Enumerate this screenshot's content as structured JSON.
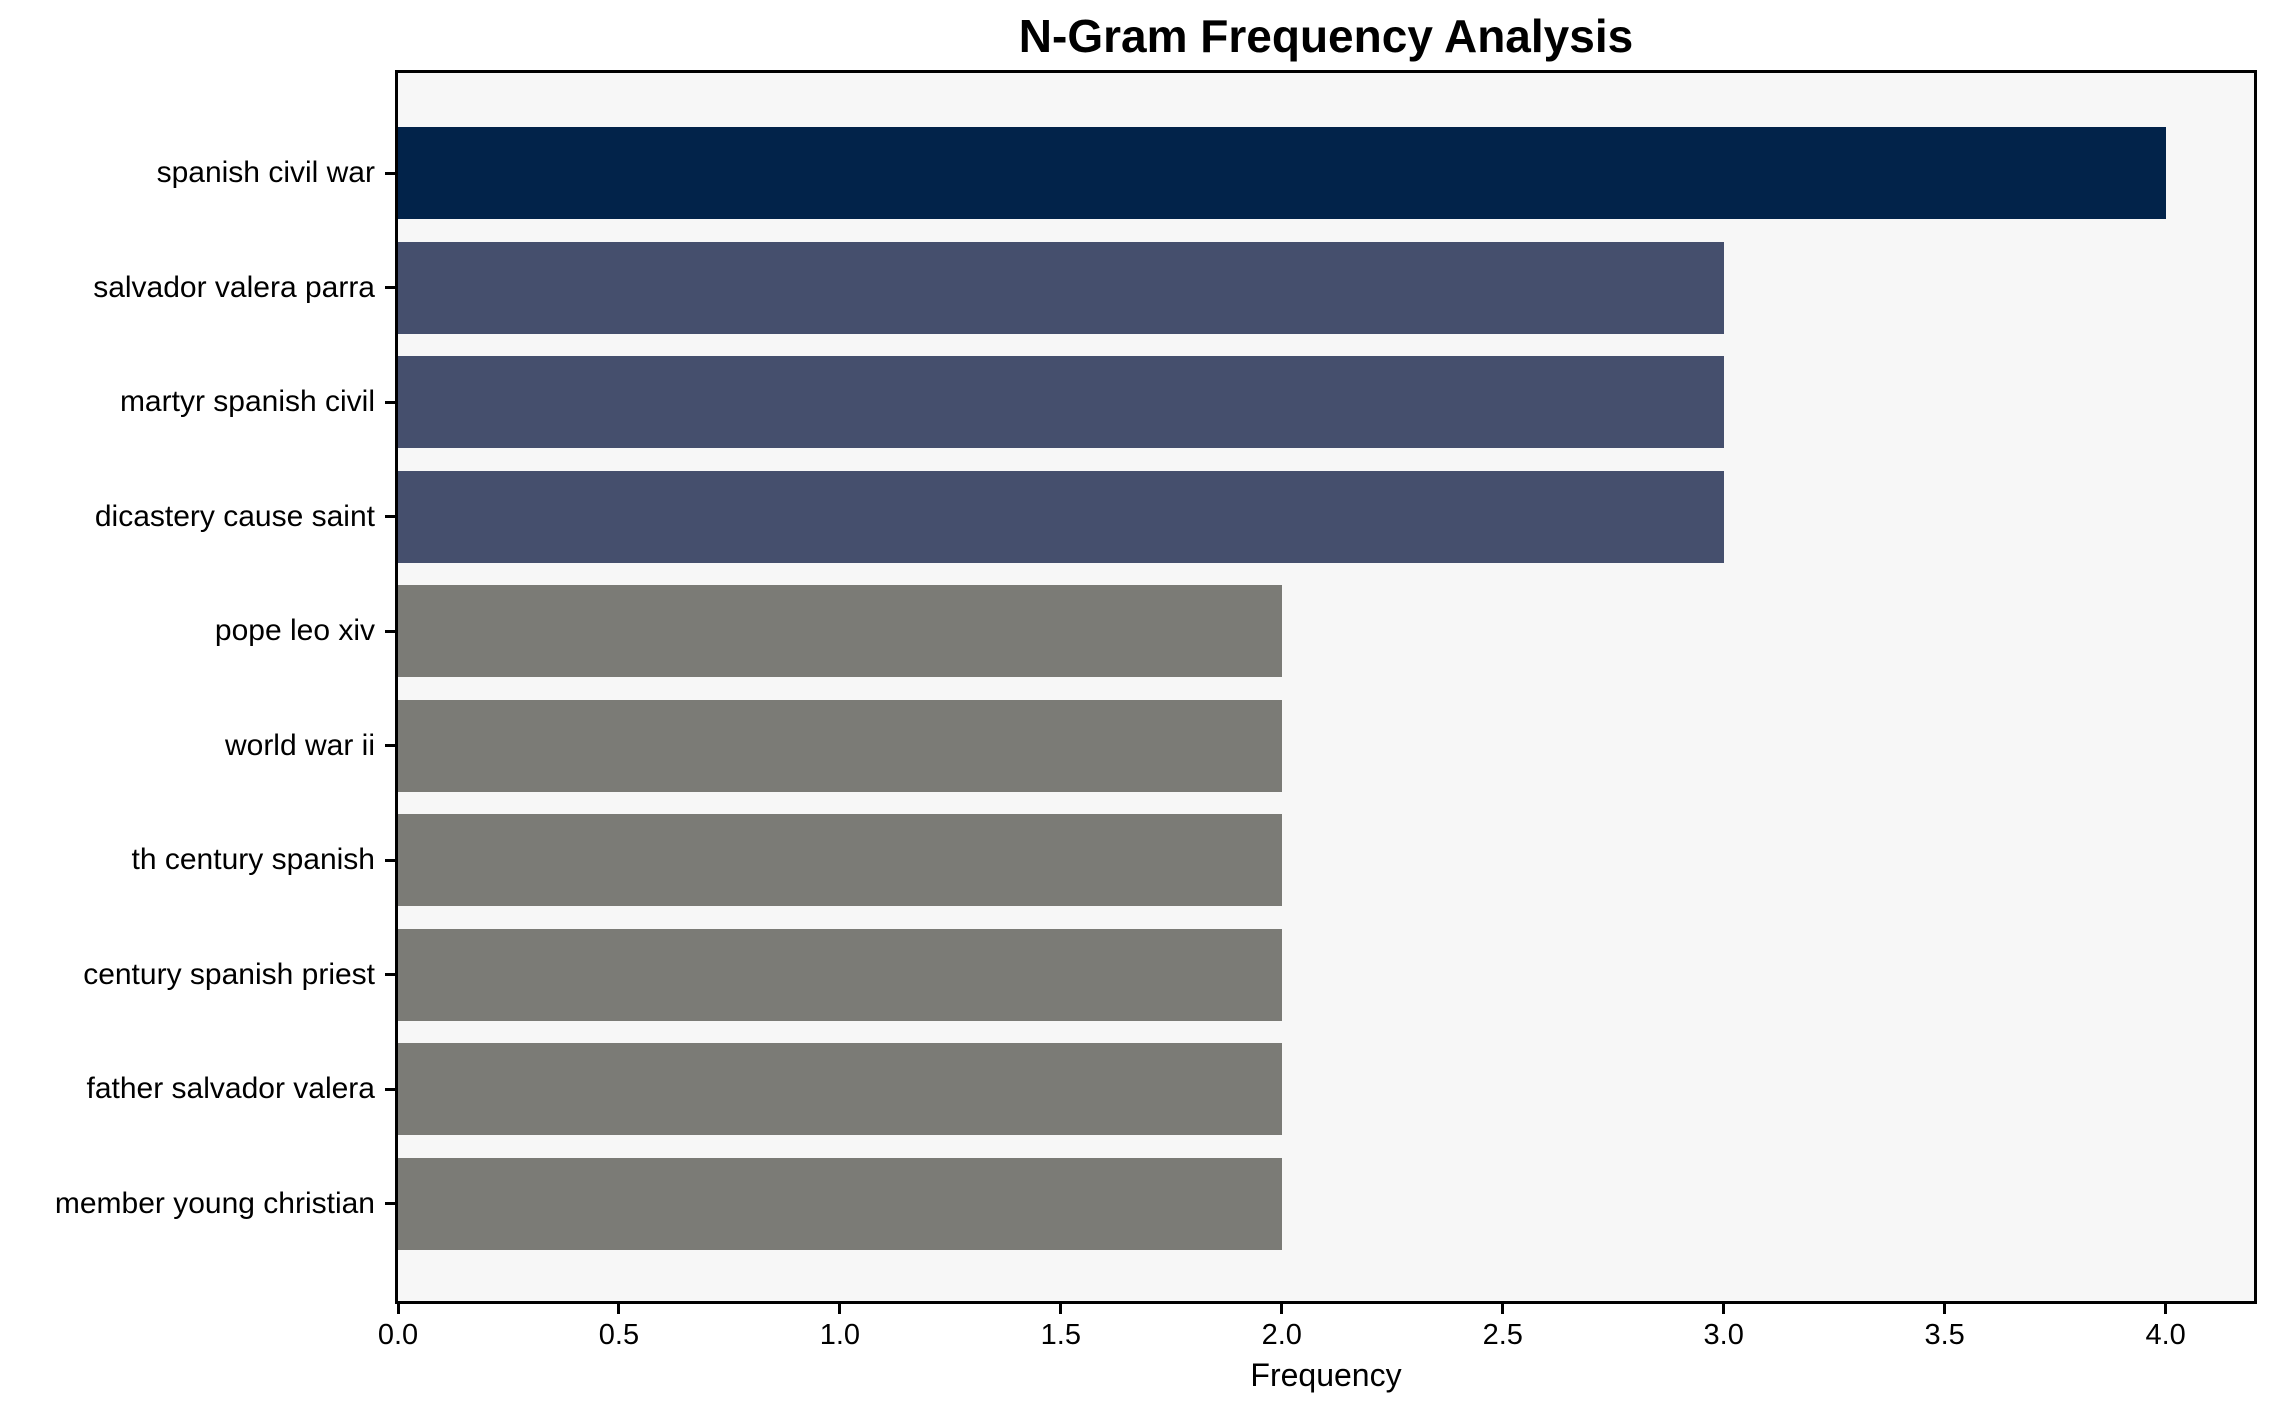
{
  "chart_data": {
    "type": "bar",
    "orientation": "horizontal",
    "title": "N-Gram Frequency Analysis",
    "xlabel": "Frequency",
    "ylabel": "",
    "categories": [
      "spanish civil war",
      "salvador valera parra",
      "martyr spanish civil",
      "dicastery cause saint",
      "pope leo xiv",
      "world war ii",
      "th century spanish",
      "century spanish priest",
      "father salvador valera",
      "member young christian"
    ],
    "values": [
      4,
      3,
      3,
      3,
      2,
      2,
      2,
      2,
      2,
      2
    ],
    "bar_colors": [
      "#02234a",
      "#454f6d",
      "#454f6d",
      "#454f6d",
      "#7b7b76",
      "#7b7b76",
      "#7b7b76",
      "#7b7b76",
      "#7b7b76",
      "#7b7b76"
    ],
    "xlim": [
      0,
      4.2
    ],
    "xticks": [
      "0.0",
      "0.5",
      "1.0",
      "1.5",
      "2.0",
      "2.5",
      "3.0",
      "3.5",
      "4.0"
    ],
    "xtick_values": [
      0,
      0.5,
      1.0,
      1.5,
      2.0,
      2.5,
      3.0,
      3.5,
      4.0
    ],
    "grid": false,
    "legend": null,
    "colors": {
      "plot_background": "#f7f7f7",
      "figure_background": "#ffffff",
      "spine": "#000000",
      "text": "#000000"
    }
  }
}
